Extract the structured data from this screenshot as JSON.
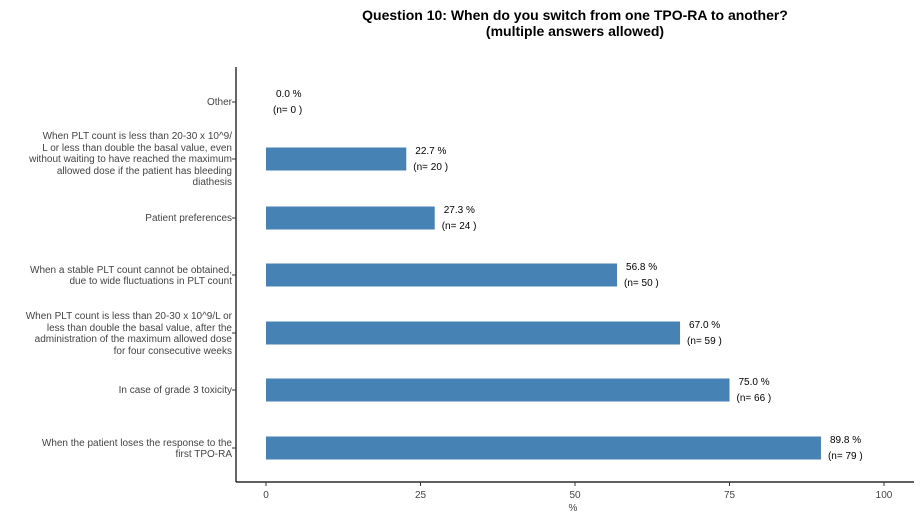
{
  "chart_data": {
    "type": "bar",
    "orientation": "horizontal",
    "title": "Question 10: When do you switch from one TPO-RA to another?",
    "subtitle": "(multiple answers allowed)",
    "xlabel": "%",
    "xlim": [
      0,
      100
    ],
    "xticks": [
      0,
      25,
      50,
      75,
      100
    ],
    "bar_color": "#4682b4",
    "categories": [
      "Other",
      "When PLT count is less than 20-30 x 10^9/ L or less than double the basal value, even without waiting to have reached the maximum allowed dose if the patient has bleeding diathesis",
      "Patient preferences",
      "When a stable PLT count cannot be obtained, due to wide fluctuations in PLT count",
      "When PLT count is less than 20-30 x 10^9/L or less than double the basal value, after the administration of the maximum allowed dose for four consecutive weeks",
      "In case of grade 3 toxicity",
      "When the patient loses the response to the first TPO-RA"
    ],
    "category_lines": [
      [
        "Other"
      ],
      [
        "When PLT count is less than 20-30 x 10^9/",
        "L or less than double the basal value, even",
        "without waiting to have reached the maximum",
        "allowed dose if the patient has bleeding",
        "diathesis"
      ],
      [
        "Patient preferences"
      ],
      [
        "When a stable PLT count cannot be obtained,",
        "due to wide fluctuations in PLT count"
      ],
      [
        "When PLT count is less than 20-30 x 10^9/L or",
        "less than double the basal value, after the",
        "administration of the maximum allowed dose",
        "for four consecutive weeks"
      ],
      [
        "In case of grade 3 toxicity"
      ],
      [
        "When the patient loses the response to the",
        "first TPO-RA"
      ]
    ],
    "values": [
      0.0,
      22.7,
      27.3,
      56.8,
      67.0,
      75.0,
      89.8
    ],
    "value_labels": [
      "0.0 %",
      "22.7 %",
      "27.3 %",
      "56.8 %",
      "67.0 %",
      "75.0 %",
      "89.8 %"
    ],
    "n_labels": [
      "(n= 0 )",
      "(n= 20 )",
      "(n= 24 )",
      "(n= 50 )",
      "(n= 59 )",
      "(n= 66 )",
      "(n= 79 )"
    ]
  }
}
